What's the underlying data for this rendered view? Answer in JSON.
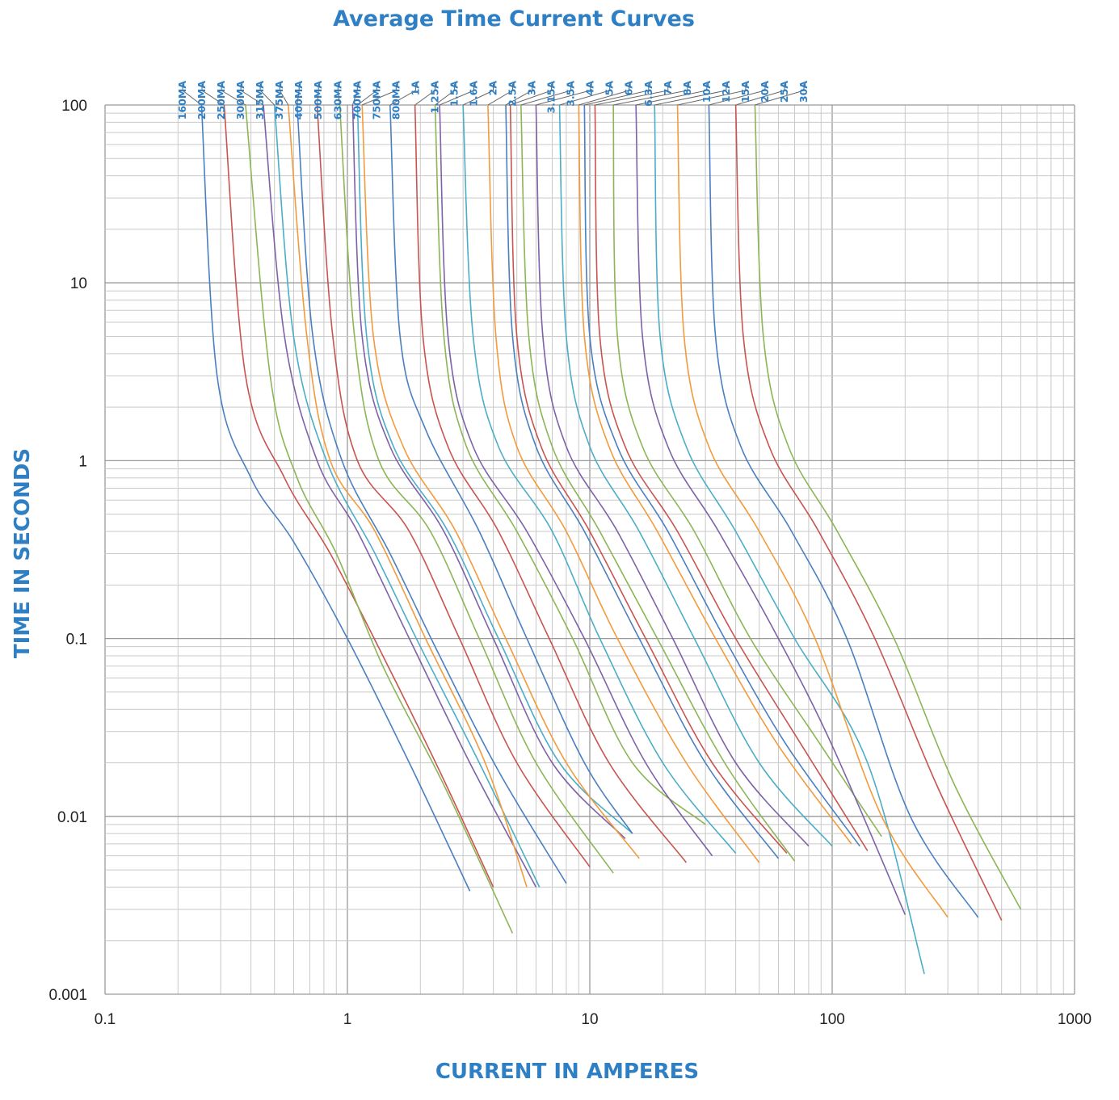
{
  "chart_data": {
    "type": "line",
    "title": "Average Time Current Curves",
    "xlabel": "CURRENT IN AMPERES",
    "ylabel": "TIME IN SECONDS",
    "x_scale": "log",
    "y_scale": "log",
    "xlim": [
      0.1,
      1000
    ],
    "ylim": [
      0.001,
      100
    ],
    "x_ticks": [
      "0.1",
      "1",
      "10",
      "100",
      "1000"
    ],
    "y_ticks": [
      "100",
      "10",
      "1",
      "0.1",
      "0.01",
      "0.001"
    ],
    "grid": true,
    "legend": "top labels",
    "series": [
      {
        "name": "160MA",
        "color": "#4a7fc1",
        "x": [
          0.25,
          0.29,
          0.4,
          0.6,
          1.0,
          1.8,
          3.2
        ],
        "y": [
          100,
          3,
          0.8,
          0.35,
          0.1,
          0.02,
          0.0038
        ]
      },
      {
        "name": "200MA",
        "color": "#c85450",
        "x": [
          0.31,
          0.38,
          0.55,
          0.85,
          1.4,
          2.4,
          4.0
        ],
        "y": [
          100,
          3,
          0.8,
          0.3,
          0.08,
          0.018,
          0.004
        ]
      },
      {
        "name": "250MA",
        "color": "#8cb556",
        "x": [
          0.38,
          0.48,
          0.62,
          0.9,
          1.4,
          2.5,
          4.8
        ],
        "y": [
          100,
          3,
          0.8,
          0.3,
          0.07,
          0.015,
          0.0022
        ]
      },
      {
        "name": "300MA",
        "color": "#7d62a8",
        "x": [
          0.45,
          0.55,
          0.75,
          1.1,
          1.8,
          3.2,
          6.0
        ],
        "y": [
          100,
          5,
          1.0,
          0.4,
          0.1,
          0.02,
          0.004
        ]
      },
      {
        "name": "315MA",
        "color": "#4badc7",
        "x": [
          0.5,
          0.6,
          0.82,
          1.3,
          2.0,
          3.5,
          6.2
        ],
        "y": [
          100,
          5,
          1.0,
          0.3,
          0.09,
          0.02,
          0.004
        ]
      },
      {
        "name": "375MA",
        "color": "#f29b3c",
        "x": [
          0.57,
          0.68,
          0.85,
          1.3,
          2.1,
          3.7,
          5.5
        ],
        "y": [
          100,
          5,
          1.0,
          0.4,
          0.1,
          0.02,
          0.004
        ]
      },
      {
        "name": "400MA",
        "color": "#4a7fc1",
        "x": [
          0.62,
          0.72,
          0.95,
          1.5,
          2.4,
          4.2,
          8.0
        ],
        "y": [
          100,
          5,
          1.0,
          0.3,
          0.08,
          0.018,
          0.0042
        ]
      },
      {
        "name": "500MA",
        "color": "#c85450",
        "x": [
          0.75,
          0.87,
          1.1,
          1.8,
          2.9,
          5.0,
          10.0
        ],
        "y": [
          100,
          5,
          1.0,
          0.4,
          0.1,
          0.02,
          0.0052
        ]
      },
      {
        "name": "630MA",
        "color": "#8cb556",
        "x": [
          0.93,
          1.07,
          1.35,
          2.2,
          3.5,
          6.0,
          12.5
        ],
        "y": [
          100,
          5,
          1.0,
          0.4,
          0.1,
          0.02,
          0.0048
        ]
      },
      {
        "name": "700MA",
        "color": "#7d62a8",
        "x": [
          1.05,
          1.15,
          1.5,
          2.5,
          4.0,
          7.0,
          14.0
        ],
        "y": [
          100,
          5,
          1.2,
          0.4,
          0.1,
          0.02,
          0.0075
        ]
      },
      {
        "name": "750MA",
        "color": "#4badc7",
        "x": [
          1.1,
          1.2,
          1.55,
          2.6,
          4.2,
          7.5,
          15.0
        ],
        "y": [
          100,
          5,
          1.2,
          0.4,
          0.1,
          0.02,
          0.008
        ]
      },
      {
        "name": "800MA",
        "color": "#f29b3c",
        "x": [
          1.15,
          1.28,
          1.7,
          2.8,
          4.5,
          8.0,
          16.0
        ],
        "y": [
          100,
          5,
          1.2,
          0.4,
          0.1,
          0.02,
          0.0058
        ]
      },
      {
        "name": "1A",
        "color": "#4a7fc1",
        "x": [
          1.5,
          1.65,
          2.1,
          3.5,
          5.5,
          9.5,
          15.0
        ],
        "y": [
          100,
          5,
          1.5,
          0.4,
          0.1,
          0.02,
          0.008
        ]
      },
      {
        "name": "1.25A",
        "color": "#c85450",
        "x": [
          1.9,
          2.05,
          2.6,
          4.2,
          6.8,
          12.0,
          25.0
        ],
        "y": [
          100,
          5,
          1.2,
          0.4,
          0.1,
          0.02,
          0.0055
        ]
      },
      {
        "name": "1.5A",
        "color": "#8cb556",
        "x": [
          2.3,
          2.5,
          3.1,
          5.0,
          8.5,
          15.0,
          30.0
        ],
        "y": [
          100,
          5,
          1.2,
          0.4,
          0.1,
          0.02,
          0.009
        ]
      },
      {
        "name": "1.6A",
        "color": "#7d62a8",
        "x": [
          2.4,
          2.6,
          3.3,
          5.5,
          9.5,
          17.0,
          32.0
        ],
        "y": [
          100,
          5,
          1.2,
          0.4,
          0.1,
          0.02,
          0.006
        ]
      },
      {
        "name": "2A",
        "color": "#4badc7",
        "x": [
          3.0,
          3.3,
          4.2,
          7.0,
          11.0,
          20.0,
          40.0
        ],
        "y": [
          100,
          5,
          1.2,
          0.4,
          0.1,
          0.02,
          0.0062
        ]
      },
      {
        "name": "2.5A",
        "color": "#f29b3c",
        "x": [
          3.8,
          4.1,
          5.0,
          8.0,
          13.0,
          25.0,
          50.0
        ],
        "y": [
          100,
          5,
          1.2,
          0.4,
          0.1,
          0.02,
          0.0055
        ]
      },
      {
        "name": "3A",
        "color": "#4a7fc1",
        "x": [
          4.5,
          4.8,
          6.0,
          9.5,
          16.0,
          30.0,
          60.0
        ],
        "y": [
          100,
          5,
          1.2,
          0.4,
          0.1,
          0.02,
          0.0058
        ]
      },
      {
        "name": "3.15A",
        "color": "#c85450",
        "x": [
          4.7,
          5.0,
          6.3,
          10.0,
          17.0,
          32.0,
          65.0
        ],
        "y": [
          100,
          5,
          1.2,
          0.4,
          0.1,
          0.02,
          0.0062
        ]
      },
      {
        "name": "3.5A",
        "color": "#8cb556",
        "x": [
          5.2,
          5.6,
          7.0,
          11.0,
          19.0,
          36.0,
          70.0
        ],
        "y": [
          100,
          5,
          1.2,
          0.4,
          0.1,
          0.02,
          0.0056
        ]
      },
      {
        "name": "4A",
        "color": "#7d62a8",
        "x": [
          6.0,
          6.4,
          8.0,
          13.0,
          22.0,
          40.0,
          80.0
        ],
        "y": [
          100,
          5,
          1.2,
          0.4,
          0.1,
          0.02,
          0.0068
        ]
      },
      {
        "name": "5A",
        "color": "#4badc7",
        "x": [
          7.5,
          8.0,
          10.0,
          16.0,
          27.0,
          50.0,
          100.0
        ],
        "y": [
          100,
          5,
          1.2,
          0.4,
          0.1,
          0.02,
          0.0068
        ]
      },
      {
        "name": "6A",
        "color": "#f29b3c",
        "x": [
          9.0,
          9.5,
          12.0,
          19.0,
          33.0,
          60.0,
          120.0
        ],
        "y": [
          100,
          5,
          1.2,
          0.4,
          0.1,
          0.025,
          0.007
        ]
      },
      {
        "name": "6.3A",
        "color": "#4a7fc1",
        "x": [
          9.5,
          10.0,
          13.0,
          21.0,
          36.0,
          65.0,
          130.0
        ],
        "y": [
          100,
          5,
          1.2,
          0.4,
          0.1,
          0.025,
          0.0068
        ]
      },
      {
        "name": "7A",
        "color": "#c85450",
        "x": [
          10.5,
          11.0,
          14.0,
          23.0,
          40.0,
          75.0,
          140.0
        ],
        "y": [
          100,
          5,
          1.2,
          0.4,
          0.1,
          0.025,
          0.0064
        ]
      },
      {
        "name": "8A",
        "color": "#8cb556",
        "x": [
          12.5,
          13.0,
          16.5,
          27.0,
          46.0,
          90.0,
          160.0
        ],
        "y": [
          100,
          5,
          1.2,
          0.4,
          0.1,
          0.025,
          0.0077
        ]
      },
      {
        "name": "10A",
        "color": "#7d62a8",
        "x": [
          15.5,
          16.5,
          21.0,
          34.0,
          60.0,
          100.0,
          200.0
        ],
        "y": [
          100,
          5,
          1.2,
          0.4,
          0.1,
          0.025,
          0.0028
        ]
      },
      {
        "name": "12A",
        "color": "#4badc7",
        "x": [
          18.5,
          19.5,
          25.0,
          40.0,
          70.0,
          140.0,
          240.0
        ],
        "y": [
          100,
          5,
          1.2,
          0.4,
          0.1,
          0.02,
          0.0013
        ]
      },
      {
        "name": "15A",
        "color": "#f29b3c",
        "x": [
          23.0,
          24.5,
          31.0,
          50.0,
          85.0,
          160.0,
          300.0
        ],
        "y": [
          100,
          5,
          1.2,
          0.4,
          0.1,
          0.01,
          0.0027
        ]
      },
      {
        "name": "20A",
        "color": "#4a7fc1",
        "x": [
          31.0,
          33.0,
          42.0,
          68.0,
          115.0,
          210.0,
          400.0
        ],
        "y": [
          100,
          5,
          1.2,
          0.4,
          0.1,
          0.01,
          0.0027
        ]
      },
      {
        "name": "25A",
        "color": "#c85450",
        "x": [
          40.0,
          43.0,
          55.0,
          88.0,
          150.0,
          270.0,
          500.0
        ],
        "y": [
          100,
          5,
          1.2,
          0.4,
          0.1,
          0.015,
          0.0026
        ]
      },
      {
        "name": "30A",
        "color": "#8cb556",
        "x": [
          48.0,
          52.0,
          66.0,
          105.0,
          180.0,
          320.0,
          600.0
        ],
        "y": [
          100,
          5,
          1.2,
          0.4,
          0.1,
          0.015,
          0.003
        ]
      }
    ]
  }
}
